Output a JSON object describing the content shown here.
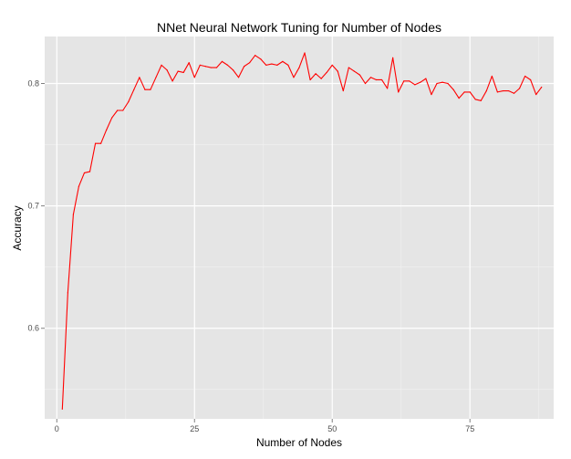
{
  "chart_data": {
    "type": "line",
    "title": "NNet Neural Network Tuning for Number of Nodes",
    "xlabel": "Number of Nodes",
    "ylabel": "Accuracy",
    "xlim": [
      -2.2,
      90.2
    ],
    "ylim": [
      0.526,
      0.8384
    ],
    "x_ticks": [
      0,
      25,
      50,
      75
    ],
    "x_tick_labels": [
      "0",
      "25",
      "50",
      "75"
    ],
    "y_ticks": [
      0.6,
      0.7,
      0.8
    ],
    "y_tick_labels": [
      "0.6",
      "0.7",
      "0.8"
    ],
    "grid": true,
    "panel_background": "#e5e5e5",
    "grid_color": "#ffffff",
    "line_color": "#ff0000",
    "series": [
      {
        "x": [
          1,
          2,
          3,
          4,
          5,
          6,
          7,
          8,
          9,
          10,
          11,
          12,
          13,
          14,
          15,
          16,
          17,
          18,
          19,
          20,
          21,
          22,
          23,
          24,
          25,
          26,
          27,
          28,
          29,
          30,
          31,
          32,
          33,
          34,
          35,
          36,
          37,
          38,
          39,
          40,
          41,
          42,
          43,
          44,
          45,
          46,
          47,
          48,
          49,
          50,
          51,
          52,
          53,
          54,
          55,
          56,
          57,
          58,
          59,
          60,
          61,
          62,
          63,
          64,
          65,
          66,
          67,
          68,
          69,
          70,
          71,
          72,
          73,
          74,
          75,
          76,
          77,
          78,
          79,
          80,
          81,
          82,
          83,
          84,
          85,
          86,
          87,
          88
        ],
        "values": [
          0.534,
          0.629,
          0.693,
          0.716,
          0.727,
          0.728,
          0.751,
          0.751,
          0.762,
          0.772,
          0.778,
          0.778,
          0.785,
          0.795,
          0.805,
          0.795,
          0.795,
          0.805,
          0.815,
          0.811,
          0.802,
          0.81,
          0.809,
          0.817,
          0.805,
          0.815,
          0.814,
          0.813,
          0.813,
          0.818,
          0.815,
          0.811,
          0.805,
          0.814,
          0.817,
          0.823,
          0.82,
          0.815,
          0.816,
          0.815,
          0.818,
          0.815,
          0.805,
          0.813,
          0.825,
          0.803,
          0.808,
          0.804,
          0.809,
          0.815,
          0.81,
          0.794,
          0.813,
          0.81,
          0.807,
          0.8,
          0.805,
          0.803,
          0.803,
          0.796,
          0.821,
          0.793,
          0.802,
          0.802,
          0.799,
          0.801,
          0.804,
          0.791,
          0.8,
          0.801,
          0.8,
          0.795,
          0.788,
          0.793,
          0.793,
          0.787,
          0.786,
          0.794,
          0.806,
          0.793,
          0.794,
          0.794,
          0.792,
          0.796,
          0.806,
          0.803,
          0.791,
          0.797
        ]
      }
    ]
  }
}
